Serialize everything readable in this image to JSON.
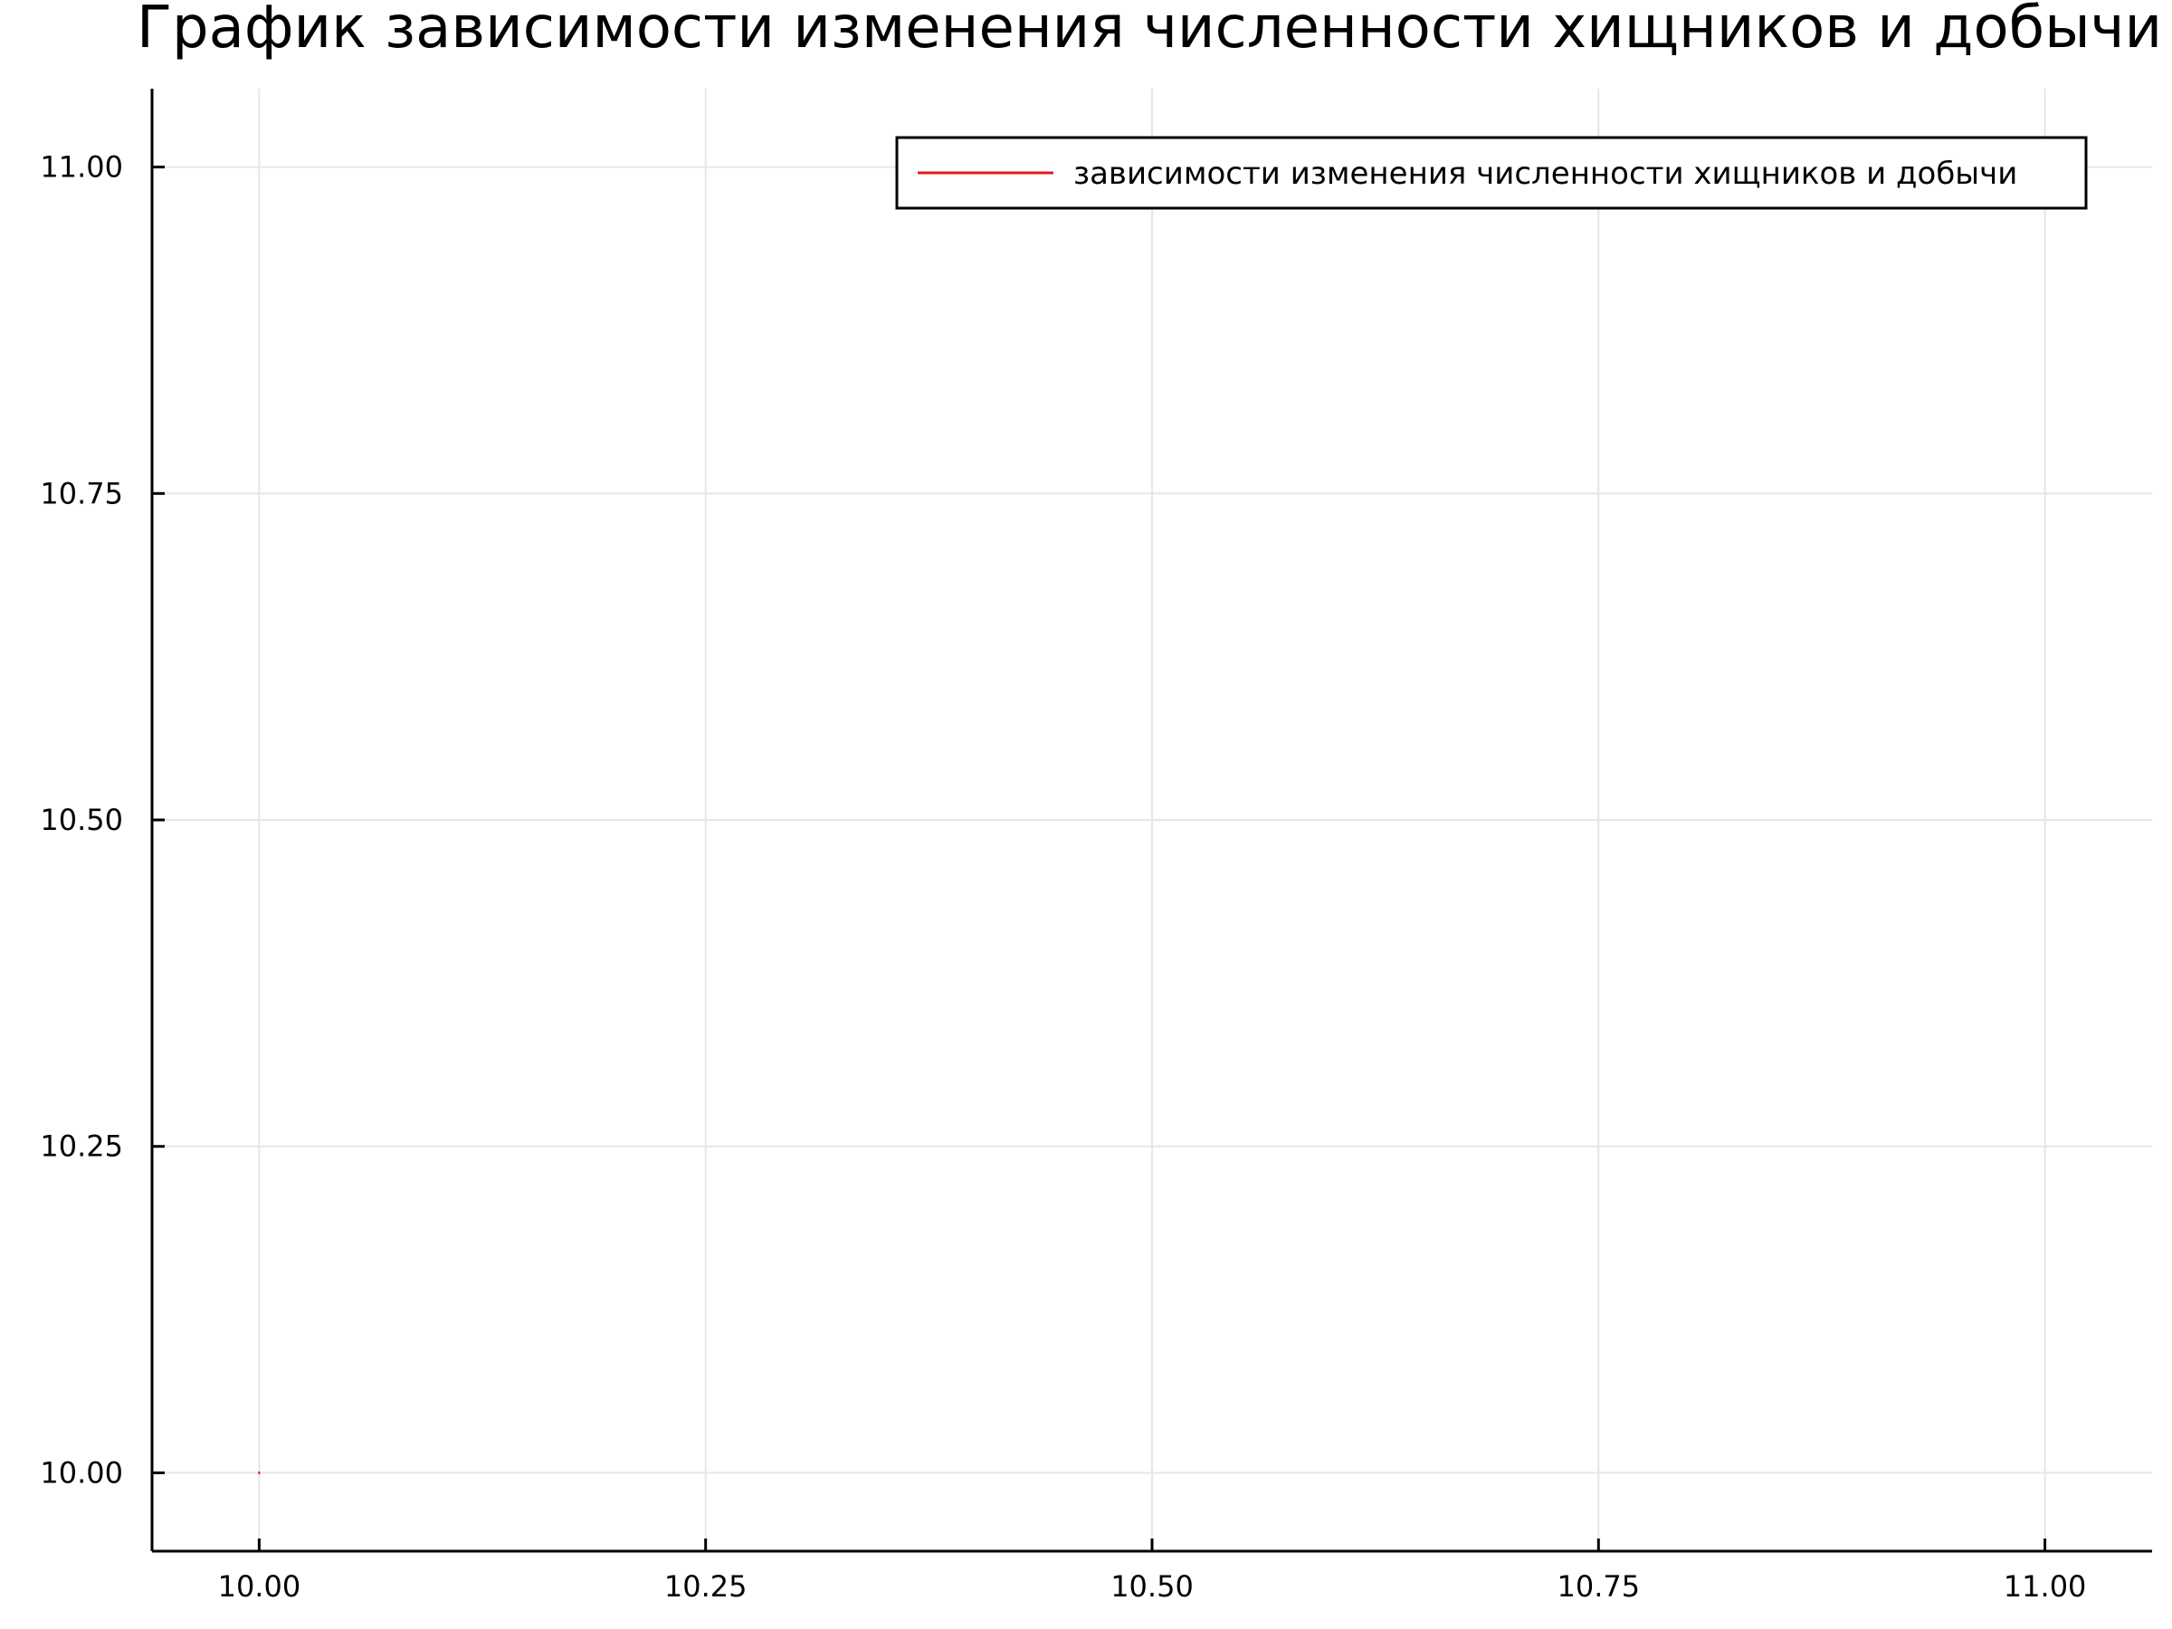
{
  "chart_data": {
    "type": "line",
    "title": "График зависимости изменения численности хищников и добычи",
    "xlabel": "",
    "ylabel": "",
    "xlim": [
      9.94,
      11.06
    ],
    "ylim": [
      9.94,
      11.06
    ],
    "x_ticks": [
      10.0,
      10.25,
      10.5,
      10.75,
      11.0
    ],
    "x_tick_labels": [
      "10.00",
      "10.25",
      "10.50",
      "10.75",
      "11.00"
    ],
    "y_ticks": [
      10.0,
      10.25,
      10.5,
      10.75,
      11.0
    ],
    "y_tick_labels": [
      "10.00",
      "10.25",
      "10.50",
      "10.75",
      "11.00"
    ],
    "grid": true,
    "legend_position": "top-right",
    "series": [
      {
        "name": "зависимости изменения численности хищников и добычи",
        "color": "#e31a1c",
        "x": [
          10.0,
          10.0
        ],
        "y": [
          10.0,
          10.0
        ]
      }
    ]
  }
}
